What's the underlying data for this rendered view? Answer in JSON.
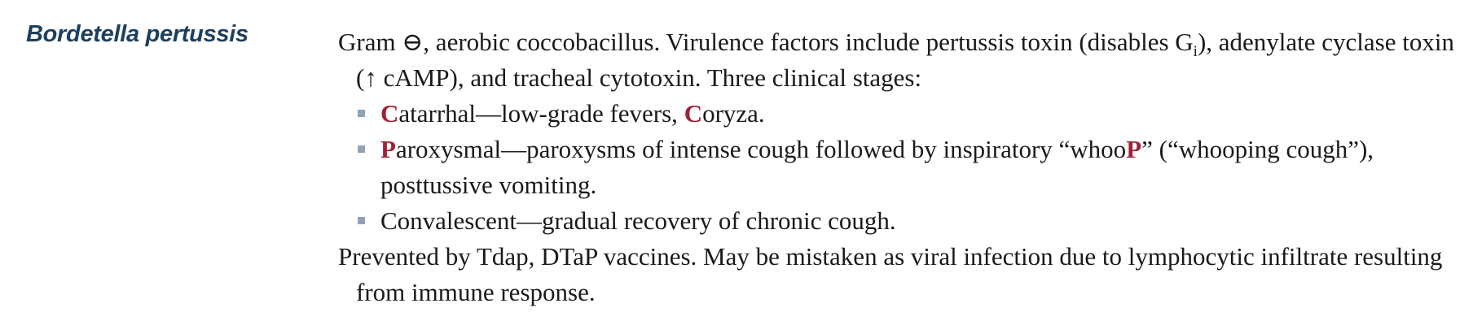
{
  "section": {
    "title": "Bordetella pertussis"
  },
  "intro": {
    "part1": "Gram ⊖, aerobic coccobacillus. Virulence factors include pertussis toxin (disables G",
    "subscript": "i",
    "part2": "), adenylate cyclase toxin (↑ cAMP), and tracheal cytotoxin. Three clinical stages:"
  },
  "stages": [
    {
      "hl1": "C",
      "text1": "atarrhal—low-grade fevers, ",
      "hl2": "C",
      "text2": "oryza."
    },
    {
      "hl1": "P",
      "text1": "aroxysmal—paroxysms of intense cough followed by inspiratory “whoo",
      "hl2": "P",
      "text2": "” (“whooping cough”), posttussive vomiting."
    },
    {
      "text1": "Convalescent—gradual recovery of chronic cough."
    }
  ],
  "closing": {
    "text": "Prevented by Tdap, DTaP vaccines. May be mistaken as viral infection due to lymphocytic infiltrate resulting from immune response."
  },
  "colors": {
    "heading": "#1c3f5e",
    "highlight": "#a12235",
    "bullet": "#8fa3b8",
    "text": "#1a1a1a"
  }
}
